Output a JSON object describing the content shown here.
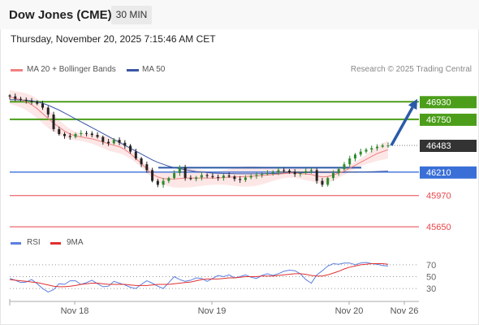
{
  "header": {
    "title": "Dow Jones (CME)",
    "timeframe": "30 MIN",
    "timestamp": "Thursday, November 20, 2025 7:15:46 AM CET"
  },
  "legend": {
    "ma20_label": "MA 20 + Bollinger Bands",
    "ma50_label": "MA 50",
    "credit": "Research © 2025 Trading Central",
    "rsi_label": "RSI",
    "rsi_ma_label": "9MA"
  },
  "colors": {
    "up_candle": "#2d8a2d",
    "down_candle": "#222222",
    "ma20": "#f08080",
    "bollinger_fill": "#fde2e2",
    "ma50": "#3a56a5",
    "resistance": "#4c9e1a",
    "support_blue": "#3a6fd8",
    "support_red": "#e8454a",
    "trend": "#2a5aa8",
    "rsi": "#5b7fe0",
    "rsi_ma": "#e03030"
  },
  "chart_data": [
    {
      "type": "candlestick",
      "x_labels": [
        "Nov 18",
        "Nov 19",
        "Nov 20",
        "Nov 26"
      ],
      "y_range": [
        45560,
        47140
      ],
      "close_series_approx": [
        46985,
        46960,
        46950,
        46940,
        46930,
        46910,
        46870,
        46800,
        46650,
        46600,
        46580,
        46570,
        46600,
        46610,
        46605,
        46590,
        46570,
        46520,
        46505,
        46540,
        46510,
        46480,
        46420,
        46350,
        46290,
        46230,
        46120,
        46080,
        46120,
        46150,
        46200,
        46260,
        46150,
        46140,
        46155,
        46180,
        46170,
        46160,
        46150,
        46175,
        46165,
        46140,
        46130,
        46155,
        46170,
        46180,
        46190,
        46200,
        46210,
        46230,
        46225,
        46210,
        46190,
        46200,
        46220,
        46230,
        46120,
        46080,
        46150,
        46200,
        46240,
        46290,
        46350,
        46390,
        46420,
        46440,
        46455,
        46470,
        46483,
        46483
      ],
      "ma20_approx": [
        46980,
        46965,
        46950,
        46930,
        46900,
        46860,
        46810,
        46760,
        46710,
        46670,
        46630,
        46600,
        46580,
        46570,
        46560,
        46550,
        46535,
        46520,
        46500,
        46485,
        46470,
        46440,
        46400,
        46350,
        46300,
        46240,
        46190,
        46160,
        46145,
        46140,
        46140,
        46145,
        46150,
        46150,
        46150,
        46150,
        46150,
        46150,
        46150,
        46155,
        46158,
        46160,
        46162,
        46165,
        46168,
        46170,
        46175,
        46180,
        46185,
        46190,
        46195,
        46200,
        46200,
        46195,
        46190,
        46185,
        46170,
        46160,
        46165,
        46180,
        46200,
        46220,
        46250,
        46280,
        46310,
        46340,
        46370,
        46400,
        46420,
        46440
      ],
      "ma50_approx": [
        46950,
        46950,
        46948,
        46945,
        46940,
        46930,
        46915,
        46895,
        46870,
        46845,
        46815,
        46785,
        46755,
        46725,
        46695,
        46665,
        46635,
        46605,
        46575,
        46545,
        46515,
        46485,
        46455,
        46425,
        46395,
        46365,
        46335,
        46310,
        46290,
        46270,
        46255,
        46245,
        46235,
        46225,
        46215,
        46210,
        46205,
        46200,
        46198,
        46196,
        46195,
        46194,
        46193,
        46193,
        46193,
        46193,
        46194,
        46195,
        46196,
        46197,
        46198,
        46200,
        46202,
        46204,
        46205,
        46206,
        46206,
        46206,
        46206,
        46206,
        46207,
        46208,
        46209,
        46210,
        46211,
        46212,
        46214,
        46216,
        46218,
        46220
      ],
      "levels": [
        {
          "label": "46930",
          "value": 46930,
          "kind": "resistance"
        },
        {
          "label": "46750",
          "value": 46750,
          "kind": "resistance"
        },
        {
          "label": "46483",
          "value": 46483,
          "kind": "last"
        },
        {
          "label": "46210",
          "value": 46210,
          "kind": "support"
        },
        {
          "label": "45970",
          "value": 45970,
          "kind": "support"
        },
        {
          "label": "45650",
          "value": 45650,
          "kind": "support"
        }
      ],
      "trend_arrow": {
        "from": 46483,
        "to": 46930
      }
    },
    {
      "type": "line",
      "y_ticks": [
        "70",
        "50",
        "30"
      ],
      "y_range": [
        15,
        85
      ],
      "series": [
        {
          "name": "RSI",
          "values": [
            47,
            44,
            40,
            41,
            45,
            38,
            30,
            24,
            28,
            38,
            37,
            43,
            43,
            37,
            40,
            44,
            38,
            33,
            34,
            42,
            39,
            36,
            32,
            30,
            37,
            43,
            39,
            34,
            30,
            40,
            50,
            45,
            42,
            44,
            48,
            47,
            42,
            47,
            52,
            50,
            53,
            48,
            50,
            53,
            49,
            47,
            52,
            55,
            52,
            55,
            59,
            61,
            60,
            55,
            45,
            39,
            53,
            60,
            68,
            72,
            71,
            73,
            73,
            70,
            73,
            74,
            72,
            71,
            69,
            68
          ]
        },
        {
          "name": "9MA",
          "values": [
            45,
            44,
            43,
            42,
            41,
            40,
            38,
            36,
            34,
            33,
            33,
            34,
            35,
            37,
            38,
            39,
            39,
            38,
            37,
            37,
            37,
            37,
            36,
            35,
            35,
            35,
            36,
            37,
            37,
            37,
            38,
            39,
            40,
            41,
            43,
            45,
            46,
            46,
            46,
            47,
            48,
            48,
            49,
            50,
            50,
            50,
            51,
            51,
            51,
            52,
            53,
            54,
            55,
            55,
            54,
            52,
            51,
            51,
            53,
            56,
            59,
            63,
            66,
            68,
            70,
            71,
            72,
            72,
            72,
            71
          ]
        }
      ]
    }
  ]
}
